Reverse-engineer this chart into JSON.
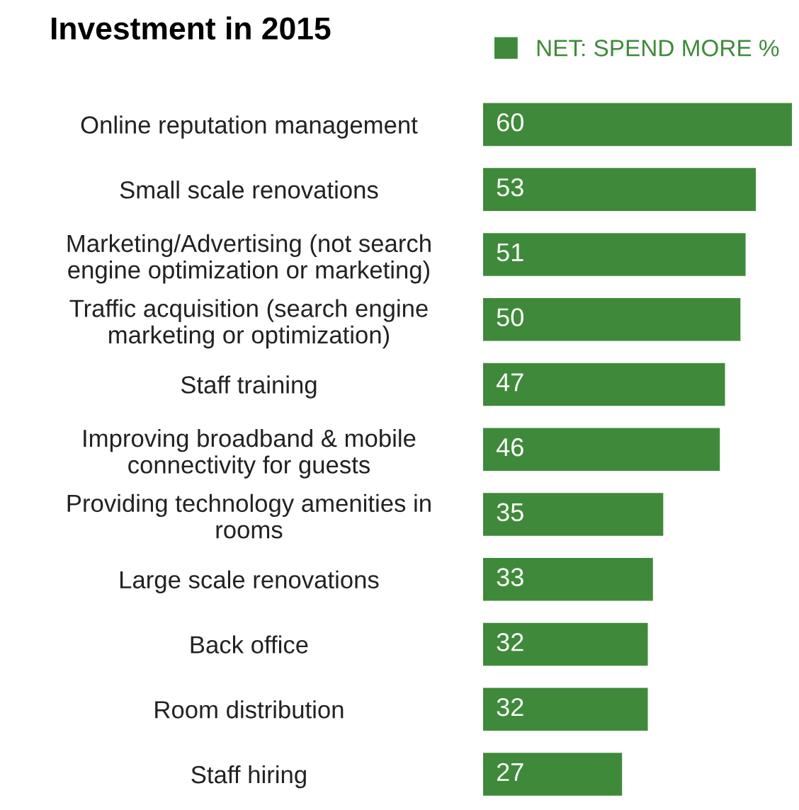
{
  "chart_data": {
    "type": "bar",
    "orientation": "horizontal",
    "title": "Investment in 2015",
    "categories": [
      "Online reputation management",
      "Small scale renovations",
      "Marketing/Advertising (not search\nengine optimization or marketing)",
      "Traffic acquisition (search engine\nmarketing or optimization)",
      "Staff training",
      "Improving broadband & mobile\nconnectivity for guests",
      "Providing technology amenities in\nrooms",
      "Large scale renovations",
      "Back office",
      "Room distribution",
      "Staff hiring"
    ],
    "series": [
      {
        "name": "NET: SPEND MORE %",
        "color": "#3f8a3a",
        "values": [
          60,
          53,
          51,
          50,
          47,
          46,
          35,
          33,
          32,
          32,
          27
        ]
      }
    ],
    "data_labels": true,
    "legend": "top",
    "grid": false
  }
}
